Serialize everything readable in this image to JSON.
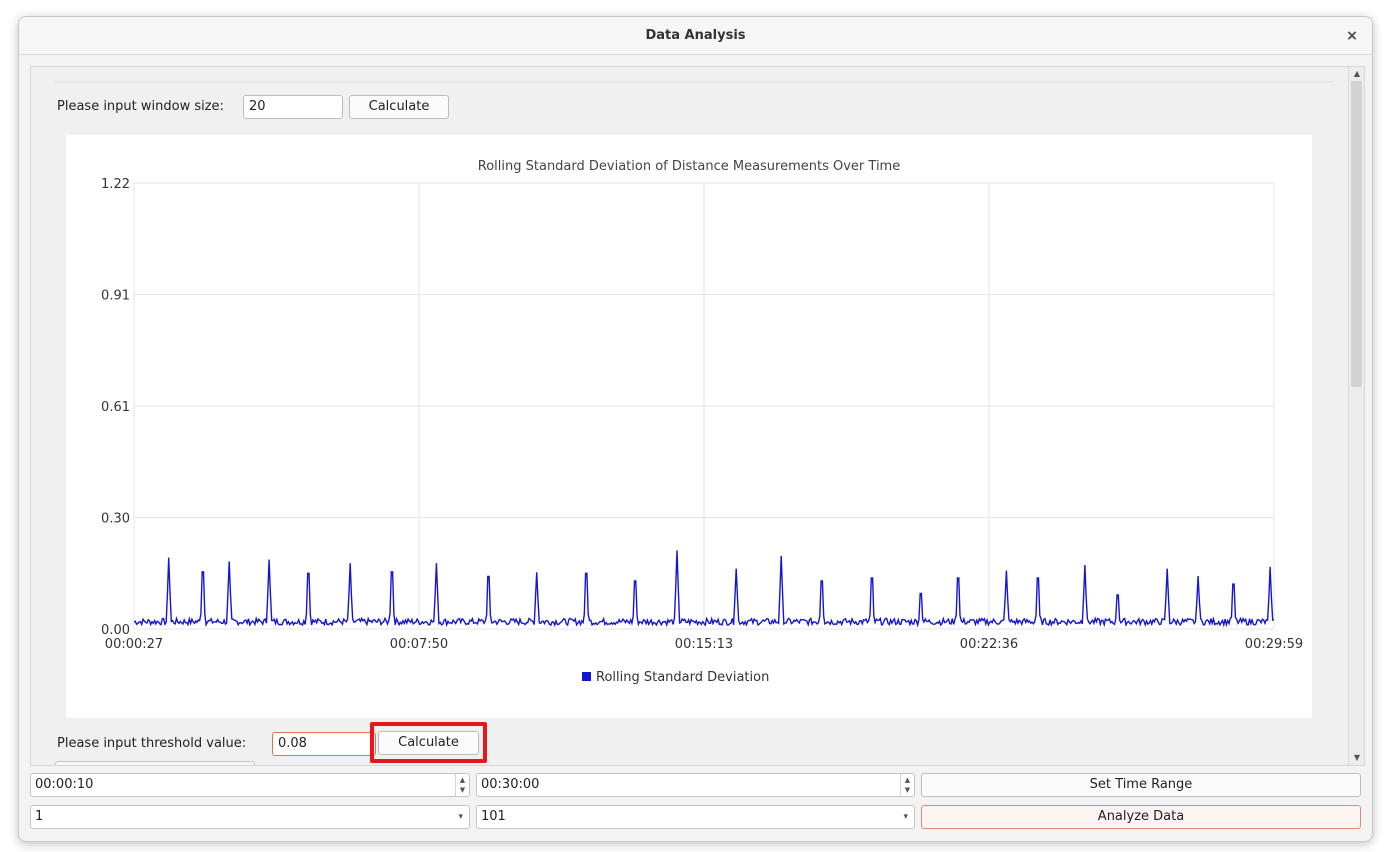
{
  "window": {
    "title": "Data Analysis",
    "close_glyph": "×"
  },
  "window_size": {
    "label": "Please input window size:",
    "value": "20",
    "button_label": "Calculate"
  },
  "threshold": {
    "label": "Please input threshold value:",
    "value": "0.08",
    "button_label": "Calculate"
  },
  "time_range": {
    "start": "00:00:10",
    "end": "00:30:00",
    "button_label": "Set Time Range"
  },
  "selectors": {
    "first_selected": "1",
    "second_selected": "101",
    "button_label": "Analyze Data"
  },
  "icons": {
    "spin_up": "▲",
    "spin_down": "▼",
    "dropdown": "▾",
    "scroll_up": "▲",
    "scroll_down": "▼"
  },
  "colors": {
    "series": "#1515d6",
    "highlight": "#e8161b",
    "accent_border": "#e58a78"
  },
  "chart_data": {
    "type": "line",
    "title": "Rolling Standard Deviation of Distance Measurements Over Time",
    "xlabel": "",
    "ylabel": "",
    "x_ticks": [
      "00:00:27",
      "00:07:50",
      "00:15:13",
      "00:22:36",
      "00:29:59"
    ],
    "y_ticks": [
      "0.00",
      "0.30",
      "0.61",
      "0.91",
      "1.22"
    ],
    "xlim_seconds": [
      27,
      1799
    ],
    "ylim": [
      0.0,
      1.22
    ],
    "grid": true,
    "legend_position": "bottom",
    "series": [
      {
        "name": "Rolling Standard Deviation",
        "color": "#1515d6",
        "baseline": 0.02,
        "peaks": [
          {
            "t": 81,
            "v": 0.195
          },
          {
            "t": 134,
            "v": 0.185
          },
          {
            "t": 175,
            "v": 0.185
          },
          {
            "t": 237,
            "v": 0.19
          },
          {
            "t": 298,
            "v": 0.18
          },
          {
            "t": 363,
            "v": 0.18
          },
          {
            "t": 428,
            "v": 0.185
          },
          {
            "t": 497,
            "v": 0.18
          },
          {
            "t": 578,
            "v": 0.17
          },
          {
            "t": 653,
            "v": 0.155
          },
          {
            "t": 730,
            "v": 0.18
          },
          {
            "t": 806,
            "v": 0.155
          },
          {
            "t": 871,
            "v": 0.215
          },
          {
            "t": 963,
            "v": 0.165
          },
          {
            "t": 1033,
            "v": 0.2
          },
          {
            "t": 1096,
            "v": 0.155
          },
          {
            "t": 1174,
            "v": 0.165
          },
          {
            "t": 1250,
            "v": 0.115
          },
          {
            "t": 1308,
            "v": 0.165
          },
          {
            "t": 1383,
            "v": 0.16
          },
          {
            "t": 1432,
            "v": 0.165
          },
          {
            "t": 1505,
            "v": 0.175
          },
          {
            "t": 1556,
            "v": 0.11
          },
          {
            "t": 1633,
            "v": 0.165
          },
          {
            "t": 1681,
            "v": 0.145
          },
          {
            "t": 1736,
            "v": 0.145
          },
          {
            "t": 1793,
            "v": 0.17
          }
        ]
      }
    ]
  }
}
